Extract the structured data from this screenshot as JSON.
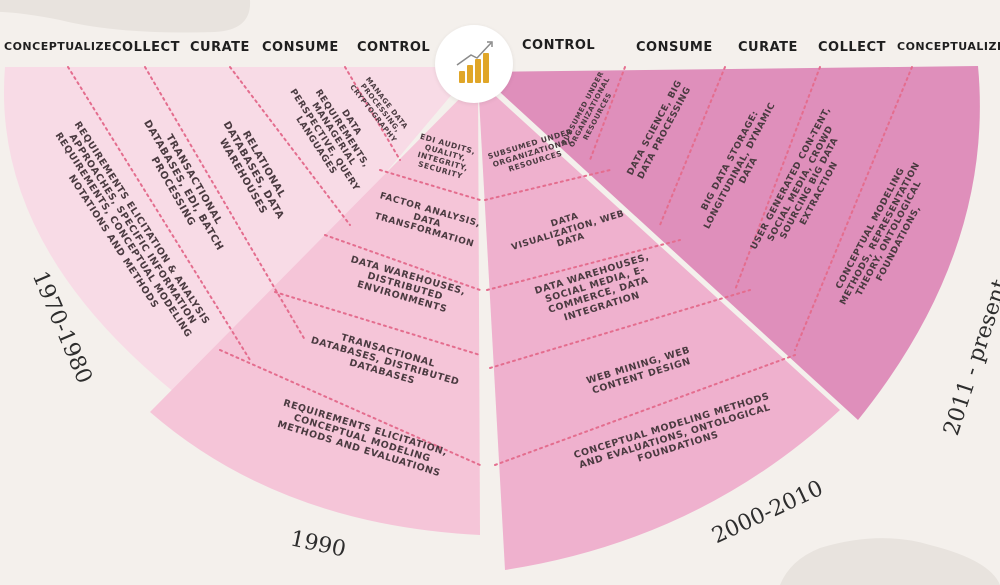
{
  "headers_left": [
    "CONCEPTUALIZE",
    "COLLECT",
    "CURATE",
    "CONSUME",
    "CONTROL"
  ],
  "headers_right": [
    "CONTROL",
    "CONSUME",
    "CURATE",
    "COLLECT",
    "CONCEPTUALIZE"
  ],
  "eras": {
    "e1970": "1970-1980",
    "e1990": "1990",
    "e2000": "2000-2010",
    "e2011": "2011 - present"
  },
  "labels": {
    "left_1970": [
      "REQUIREMENTS ELICITATION & ANALYSIS APPROACHES, SPECIFIC INFORMATION REQUIREMENTS, CONCEPTUAL MODELING NOTATIONS AND METHODS",
      "TRANSACTIONAL DATABASES, EDI, BATCH PROCESSING",
      "RELATIONAL DATABASES, DATA WAREHOUSES",
      "DATA REQUIREMENTS, MANAGERIAL PERSPECTIVE, QUERY LANGUAGES",
      "MANAGE DATA PROCESSING, CRYPTOGRAPHY"
    ],
    "left_1990": [
      "EDI AUDITS, QUALITY, INTEGRITY, SECURITY",
      "FACTOR ANALYSIS, DATA TRANSFORMATION",
      "DATA WAREHOUSES, DISTRIBUTED ENVIRONMENTS",
      "TRANSACTIONAL DATABASES, DISTRIBUTED DATABASES",
      "REQUIREMENTS ELICITATION, CONCEPTUAL MODELING METHODS AND EVALUATIONS"
    ],
    "right_2000": [
      "SUBSUMED UNDER ORGANIZATIONAL RESOURCES",
      "DATA VISUALIZATION, WEB DATA",
      "DATA WAREHOUSES, SOCIAL MEDIA, E-COMMERCE, DATA INTEGRATION",
      "WEB MINING, WEB CONTENT DESIGN",
      "CONCEPTUAL MODELING METHODS AND EVALUATIONS, ONTOLOGICAL FOUNDATIONS"
    ],
    "right_2011": [
      "SUBSUMED UNDER ORGANIZATIONAL RESOURCES",
      "DATA SCIENCE, BIG DATA PROCESSING",
      "BIG DATA STORAGE: LONGITUDINAL, DYNAMIC DATA",
      "USER GENERATED CON-TENT, SOCIAL MEDIA, CROWD SOURCING BIG DATA EXTRACTION",
      "CONCEPTUAL MODELING METHODS, REPRESENTATION THEORY, ONTOLOGICAL FOUNDATIONS,"
    ]
  },
  "colors": {
    "background": "#f4f0ec",
    "era_1970": "#f8dbe6",
    "era_1990": "#f5c5d8",
    "era_2000": "#efb1ce",
    "era_2011": "#dc87b6",
    "divider": "#e46d8e",
    "icon_bar": "#e0a628"
  },
  "icon": "growth-chart-icon"
}
